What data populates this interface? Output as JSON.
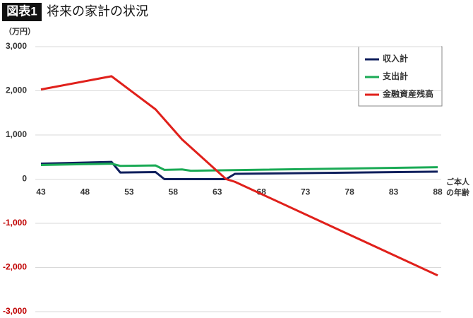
{
  "chart_data": {
    "type": "line",
    "title_badge": "図表1",
    "title": "将来の家計の状況",
    "y_unit": "（万円）",
    "x_label_lines": [
      "ご本人",
      "の年齢"
    ],
    "xlim": [
      43,
      88
    ],
    "xticks": [
      43,
      48,
      53,
      58,
      63,
      68,
      73,
      78,
      83,
      88
    ],
    "ylim": [
      -3000,
      3000
    ],
    "yticks": [
      {
        "value": 3000,
        "label": "3,000"
      },
      {
        "value": 2000,
        "label": "2,000"
      },
      {
        "value": 1000,
        "label": "1,000"
      },
      0,
      {
        "value": -1000,
        "label": "-1,000"
      },
      {
        "value": -2000,
        "label": "-2,000"
      },
      {
        "value": -3000,
        "label": "-3,000"
      }
    ],
    "negative_tick_color": "#c00000",
    "grid": true,
    "legend": "upper right",
    "series": [
      {
        "name": "収入計",
        "color": "#0f1f5c",
        "x": [
          43,
          51,
          52,
          56,
          57,
          64,
          65,
          88
        ],
        "values": [
          350,
          390,
          150,
          160,
          0,
          0,
          120,
          170
        ]
      },
      {
        "name": "支出計",
        "color": "#1aaa55",
        "x": [
          43,
          51,
          52,
          56,
          57,
          59,
          60,
          88
        ],
        "values": [
          320,
          350,
          300,
          310,
          210,
          220,
          190,
          270
        ]
      },
      {
        "name": "金融資産残高",
        "color": "#e0201b",
        "x": [
          43,
          51,
          56,
          59,
          64,
          65,
          88
        ],
        "values": [
          2030,
          2330,
          1580,
          900,
          0,
          -60,
          -2180
        ]
      }
    ]
  }
}
